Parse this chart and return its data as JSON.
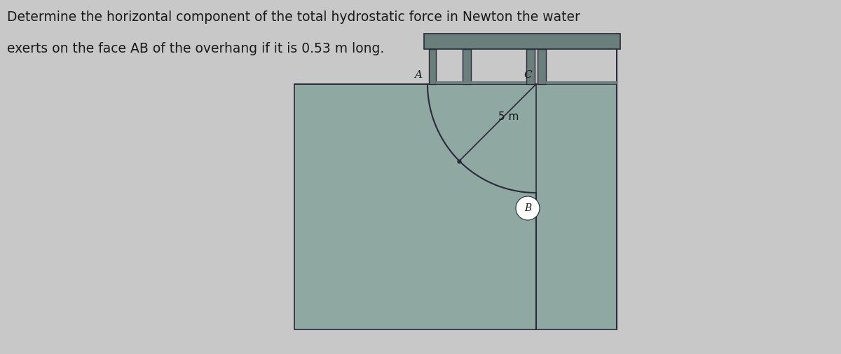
{
  "title_line1": "Determine the horizontal component of the total hydrostatic force in Newton the water",
  "title_line2": "exerts on the face AB of the overhang if it is 0.53 m long.",
  "title_fontsize": 13.5,
  "bg_color": "#c8c8c8",
  "water_color": "#8fa8a2",
  "wall_color": "#7a8e8a",
  "text_color": "#1a1a1a",
  "label_A": "A",
  "label_B": "B",
  "label_C": "C",
  "label_5m": "5 m",
  "curve_color": "#2a2a3a",
  "line_color": "#2a2a3a",
  "struct_color": "#6a7e7c",
  "struct_edge": "#2a2a3a"
}
